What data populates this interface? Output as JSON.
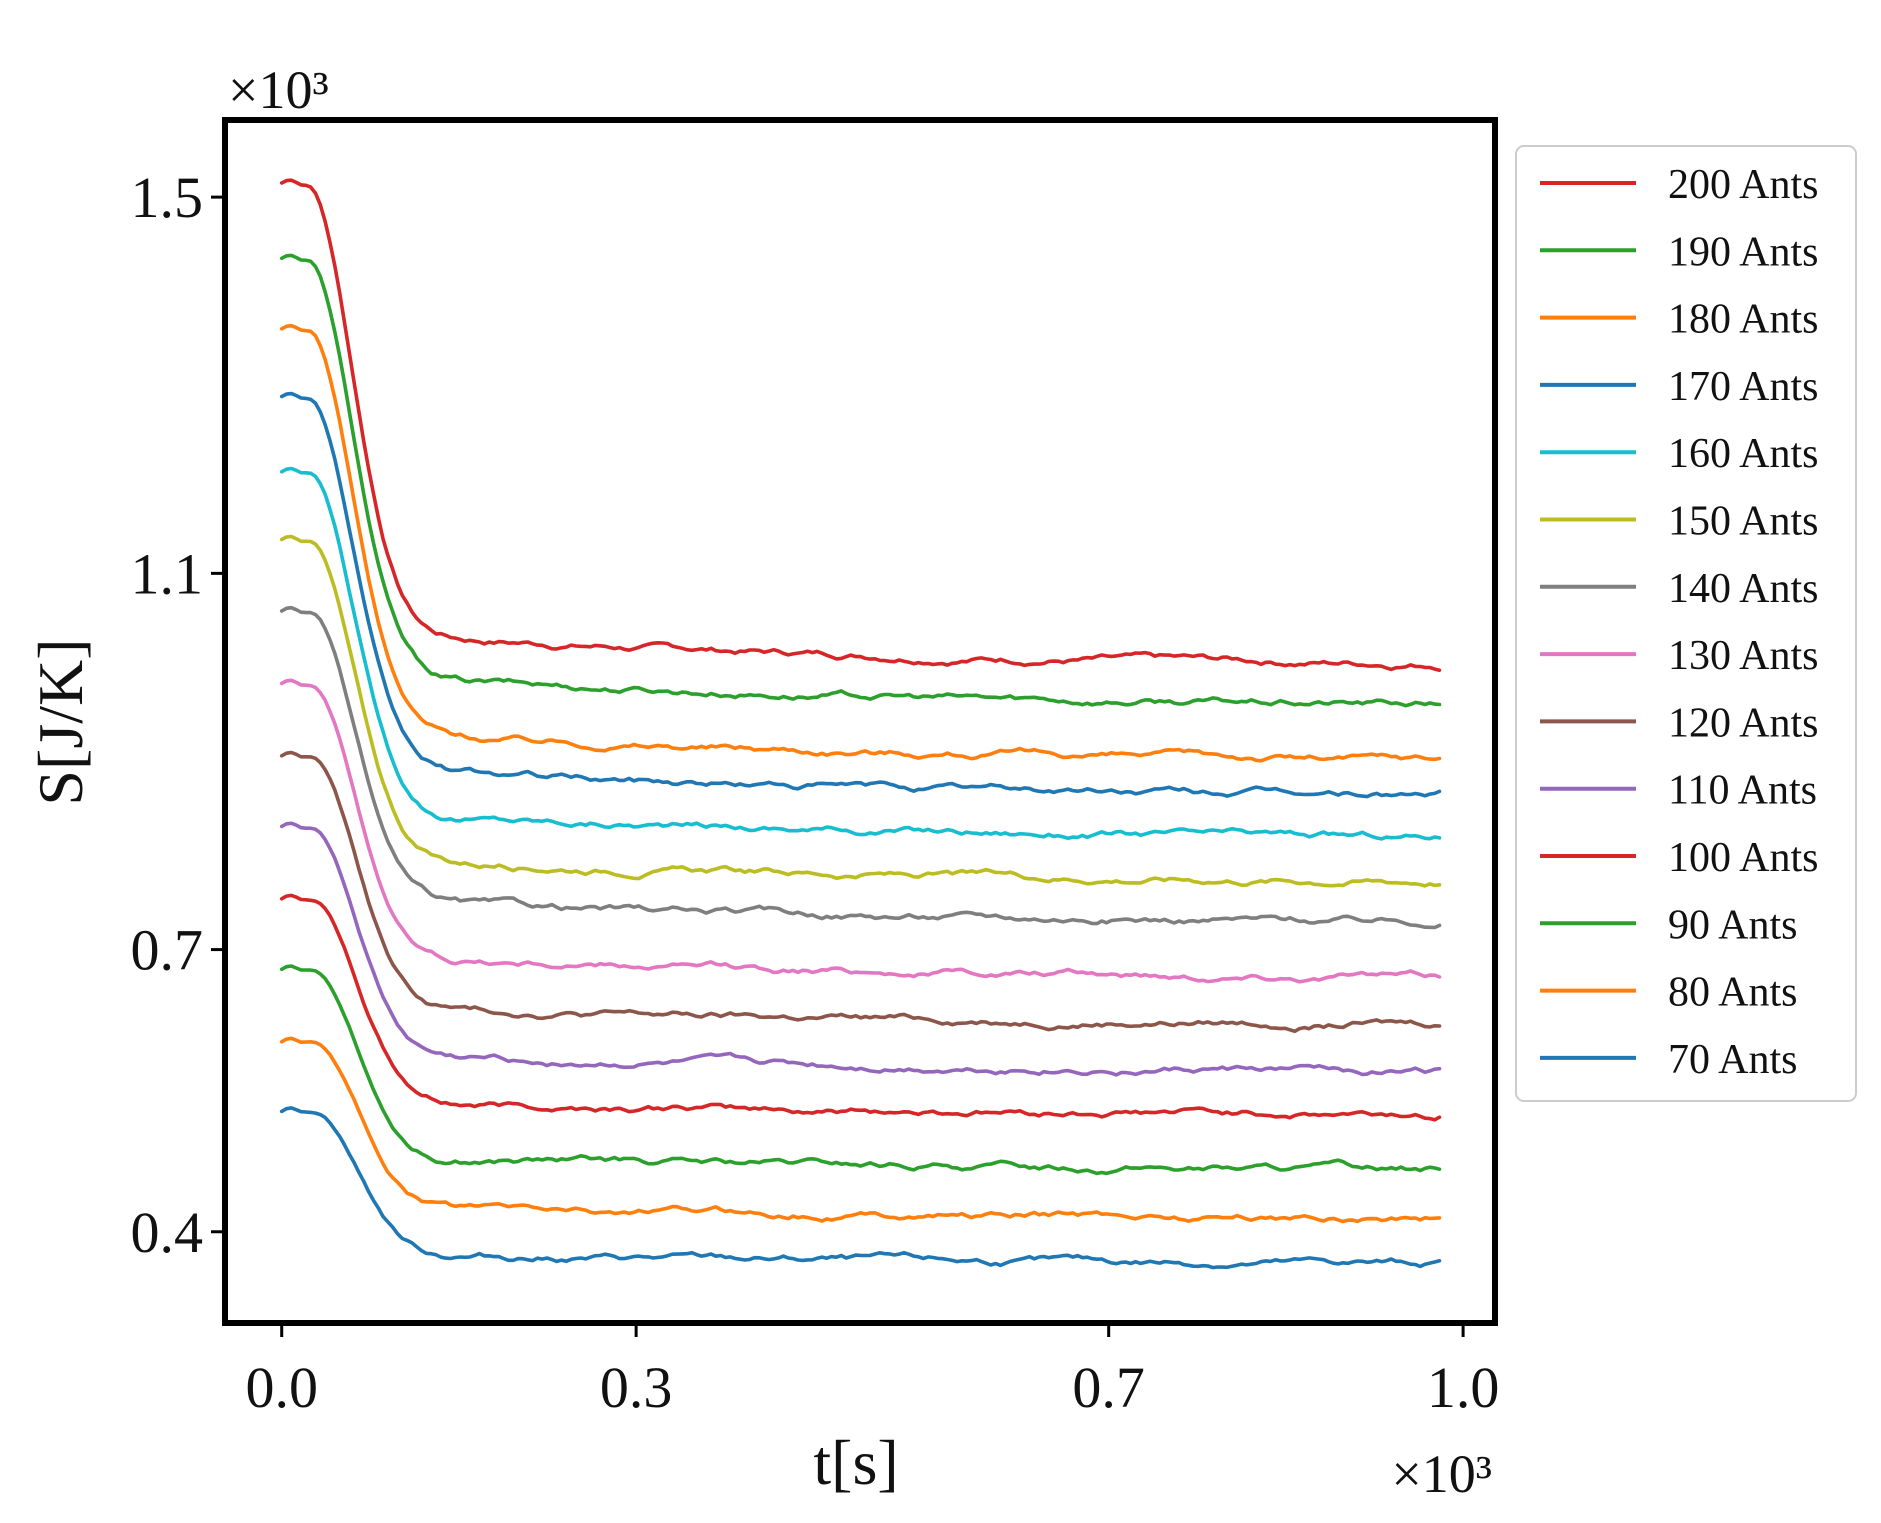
{
  "chart_data": {
    "type": "line",
    "title": "",
    "xlabel": "t[s]",
    "ylabel": "S[J/K]",
    "x_multiplier": "×10³",
    "y_multiplier": "×10³",
    "xlim": [
      -0.048,
      1.027
    ],
    "ylim": [
      0.303,
      1.582
    ],
    "xticks": [
      0.0,
      0.3,
      0.7,
      1.0
    ],
    "xtick_labels": [
      "0.0",
      "0.3",
      "0.7",
      "1.0"
    ],
    "yticks": [
      0.4,
      0.7,
      1.1,
      1.5
    ],
    "ytick_labels": [
      "0.4",
      "0.7",
      "1.1",
      "1.5"
    ],
    "grid": false,
    "legend_position": "outside-right-top",
    "series": [
      {
        "name": "200 Ants",
        "color": "#d62728",
        "start": 1.515,
        "end": 1.0
      },
      {
        "name": "190 Ants",
        "color": "#2ca02c",
        "start": 1.435,
        "end": 0.957
      },
      {
        "name": "180 Ants",
        "color": "#ff7f0e",
        "start": 1.36,
        "end": 0.899
      },
      {
        "name": "170 Ants",
        "color": "#1f77b4",
        "start": 1.288,
        "end": 0.862
      },
      {
        "name": "160 Ants",
        "color": "#17becf",
        "start": 1.208,
        "end": 0.817
      },
      {
        "name": "150 Ants",
        "color": "#bcbd22",
        "start": 1.136,
        "end": 0.77
      },
      {
        "name": "140 Ants",
        "color": "#7f7f7f",
        "start": 1.06,
        "end": 0.728
      },
      {
        "name": "130 Ants",
        "color": "#e377c2",
        "start": 0.983,
        "end": 0.669
      },
      {
        "name": "120 Ants",
        "color": "#8c564b",
        "start": 0.906,
        "end": 0.619
      },
      {
        "name": "110 Ants",
        "color": "#9467bd",
        "start": 0.831,
        "end": 0.568
      },
      {
        "name": "100 Ants",
        "color": "#d62728",
        "start": 0.754,
        "end": 0.523
      },
      {
        "name": "90 Ants",
        "color": "#2ca02c",
        "start": 0.679,
        "end": 0.465
      },
      {
        "name": "80 Ants",
        "color": "#ff7f0e",
        "start": 0.602,
        "end": 0.414
      },
      {
        "name": "70 Ants",
        "color": "#1f77b4",
        "start": 0.528,
        "end": 0.365
      }
    ]
  }
}
